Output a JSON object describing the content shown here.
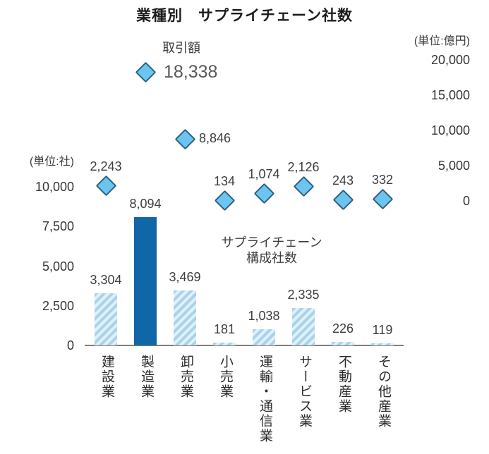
{
  "chart_data": {
    "type": "bar",
    "title": "業種別　サプライチェーン社数",
    "categories": [
      "建設業",
      "製造業",
      "卸売業",
      "小売業",
      "運輸・通信業",
      "サービス業",
      "不動産業",
      "その他産業"
    ],
    "series": [
      {
        "name": "サプライチェーン構成社数",
        "type": "bar",
        "axis": "left",
        "values": [
          3304,
          8094,
          3469,
          181,
          1038,
          2335,
          226,
          119
        ]
      },
      {
        "name": "取引額",
        "type": "scatter",
        "marker": "diamond",
        "axis": "right",
        "values": [
          2243,
          18338,
          8846,
          134,
          1074,
          2126,
          243,
          332
        ]
      }
    ],
    "left_axis": {
      "unit_label": "(単位:社)",
      "min": 0,
      "max": 10000,
      "tick_labels": [
        "10,000",
        "7,500",
        "5,000",
        "2,500",
        "0"
      ]
    },
    "right_axis": {
      "unit_label": "(単位:億円)",
      "min": 0,
      "max": 20000,
      "tick_labels": [
        "20,000",
        "15,000",
        "10,000",
        "5,000",
        "0"
      ]
    },
    "highlight_bar_index": 1,
    "emphasized_marker_index": 1,
    "marker_label_placement": [
      "above",
      "right-big",
      "right",
      "above",
      "above",
      "above",
      "above",
      "above"
    ],
    "legend": {
      "label": "取引額"
    },
    "annotation": {
      "lines": [
        "サプライチェーン",
        "構成社数"
      ]
    },
    "grid": false,
    "colors": {
      "bar_highlight": "#0f67a7",
      "bar_hatch_dark": "#a9d3eb",
      "bar_hatch_light": "#e0f0f9",
      "marker_fill": "#6cc5f0",
      "marker_stroke": "#2e6080",
      "axis_line": "#7f7f7f",
      "text": "#3d3d3d",
      "big_label_text": "#595959"
    }
  }
}
